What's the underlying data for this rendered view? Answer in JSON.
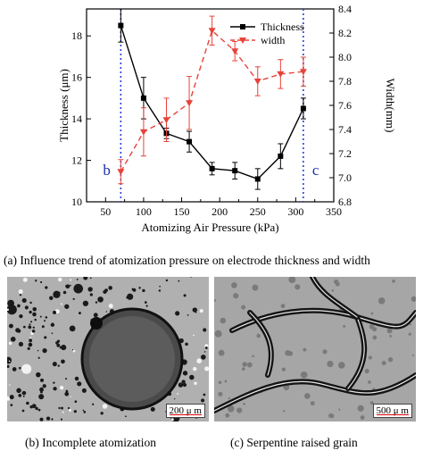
{
  "chart_data": {
    "type": "line",
    "xlabel": "Atomizing Air Pressure (kPa)",
    "ylabel_left": "Thickness (μm)",
    "ylabel_right": "Width(mm)",
    "x_ticks": [
      "50",
      "100",
      "150",
      "200",
      "250",
      "300",
      "350"
    ],
    "y_left_ticks": [
      "10",
      "12",
      "14",
      "16",
      "18"
    ],
    "y_right_ticks": [
      "6.8",
      "7.0",
      "7.2",
      "7.4",
      "7.6",
      "7.8",
      "8.0",
      "8.2",
      "8.4"
    ],
    "xlim": [
      25,
      350
    ],
    "ylim_left": [
      10,
      19.3
    ],
    "ylim_right": [
      6.8,
      8.4
    ],
    "legend_position": "top-right",
    "series": [
      {
        "name": "Thickness",
        "axis": "left",
        "color": "#000000",
        "marker": "square",
        "line": "solid",
        "x": [
          70,
          100,
          130,
          160,
          190,
          220,
          250,
          280,
          310
        ],
        "y": [
          18.5,
          15.0,
          13.3,
          12.9,
          11.6,
          11.5,
          11.1,
          12.2,
          14.5
        ],
        "err": [
          0.8,
          1.0,
          0.25,
          0.5,
          0.3,
          0.4,
          0.5,
          0.6,
          0.5
        ]
      },
      {
        "name": "width",
        "axis": "right",
        "color": "#e8423a",
        "marker": "triangle-down",
        "line": "dashed",
        "x": [
          70,
          100,
          130,
          160,
          190,
          220,
          250,
          280,
          310
        ],
        "y": [
          7.05,
          7.38,
          7.48,
          7.62,
          8.22,
          8.05,
          7.8,
          7.86,
          7.88
        ],
        "err": [
          0.1,
          0.2,
          0.18,
          0.22,
          0.12,
          0.08,
          0.12,
          0.12,
          0.12
        ]
      }
    ],
    "annotations": [
      {
        "text": "b",
        "x": 70
      },
      {
        "text": "c",
        "x": 310
      }
    ]
  },
  "captions": {
    "a": "(a)  Influence trend of atomization pressure on electrode thickness and width",
    "b": "(b)   Incomplete atomization",
    "c": "(c) Serpentine raised grain"
  },
  "scale_bars": {
    "b": "200 μ m",
    "c": "500 μ m"
  }
}
